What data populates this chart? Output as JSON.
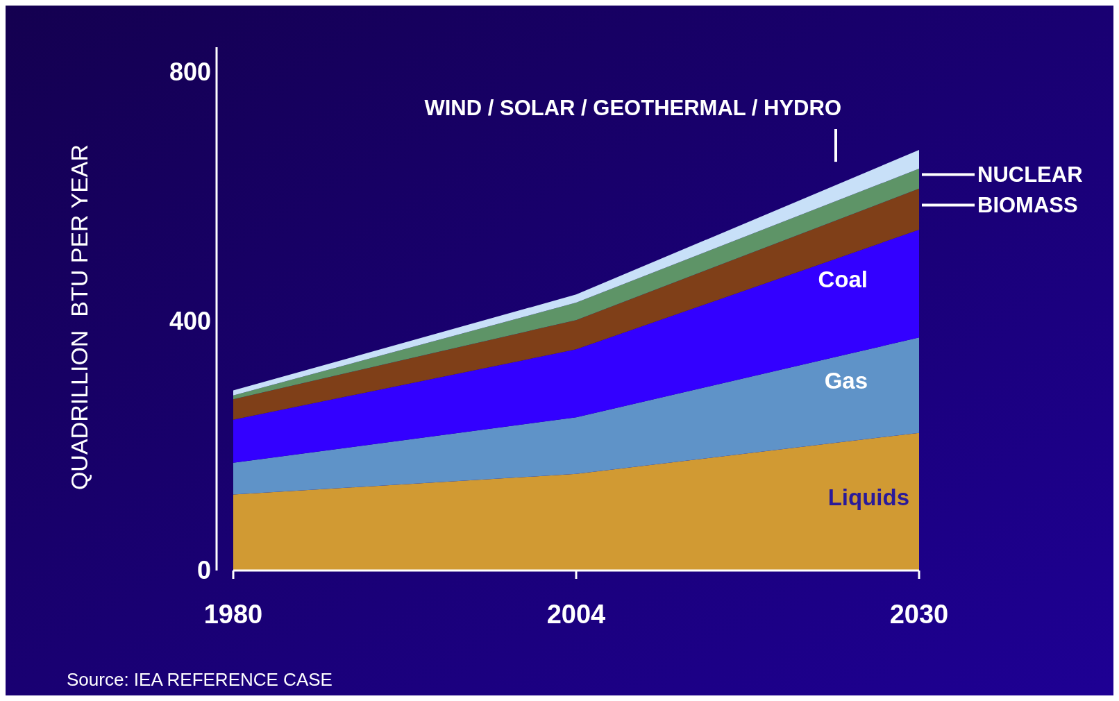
{
  "chart_data": {
    "type": "area",
    "stacked": true,
    "categories": [
      "1980",
      "2004",
      "2030"
    ],
    "ylabel": "QUADRILLION  BTU PER YEAR",
    "ylim": [
      0,
      840
    ],
    "yticks": [
      0,
      400,
      800
    ],
    "grid": false,
    "series": [
      {
        "name": "Liquids",
        "color": "#d19a33",
        "values": [
          122,
          155,
          221
        ]
      },
      {
        "name": "Gas",
        "color": "#5f93c8",
        "values": [
          51,
          91,
          153
        ]
      },
      {
        "name": "Coal",
        "color": "#3300ff",
        "values": [
          69,
          109,
          173
        ]
      },
      {
        "name": "BIOMASS",
        "color": "#7f3f18",
        "values": [
          33,
          47,
          66
        ]
      },
      {
        "name": "NUCLEAR",
        "color": "#5e9467",
        "values": [
          6,
          28,
          32
        ]
      },
      {
        "name": "WIND / SOLAR / GEOTHERMAL / HYDRO",
        "color": "#c8e0f8",
        "values": [
          8,
          13,
          30
        ]
      }
    ],
    "annotations": [
      "Source: IEA REFERENCE CASE"
    ]
  }
}
